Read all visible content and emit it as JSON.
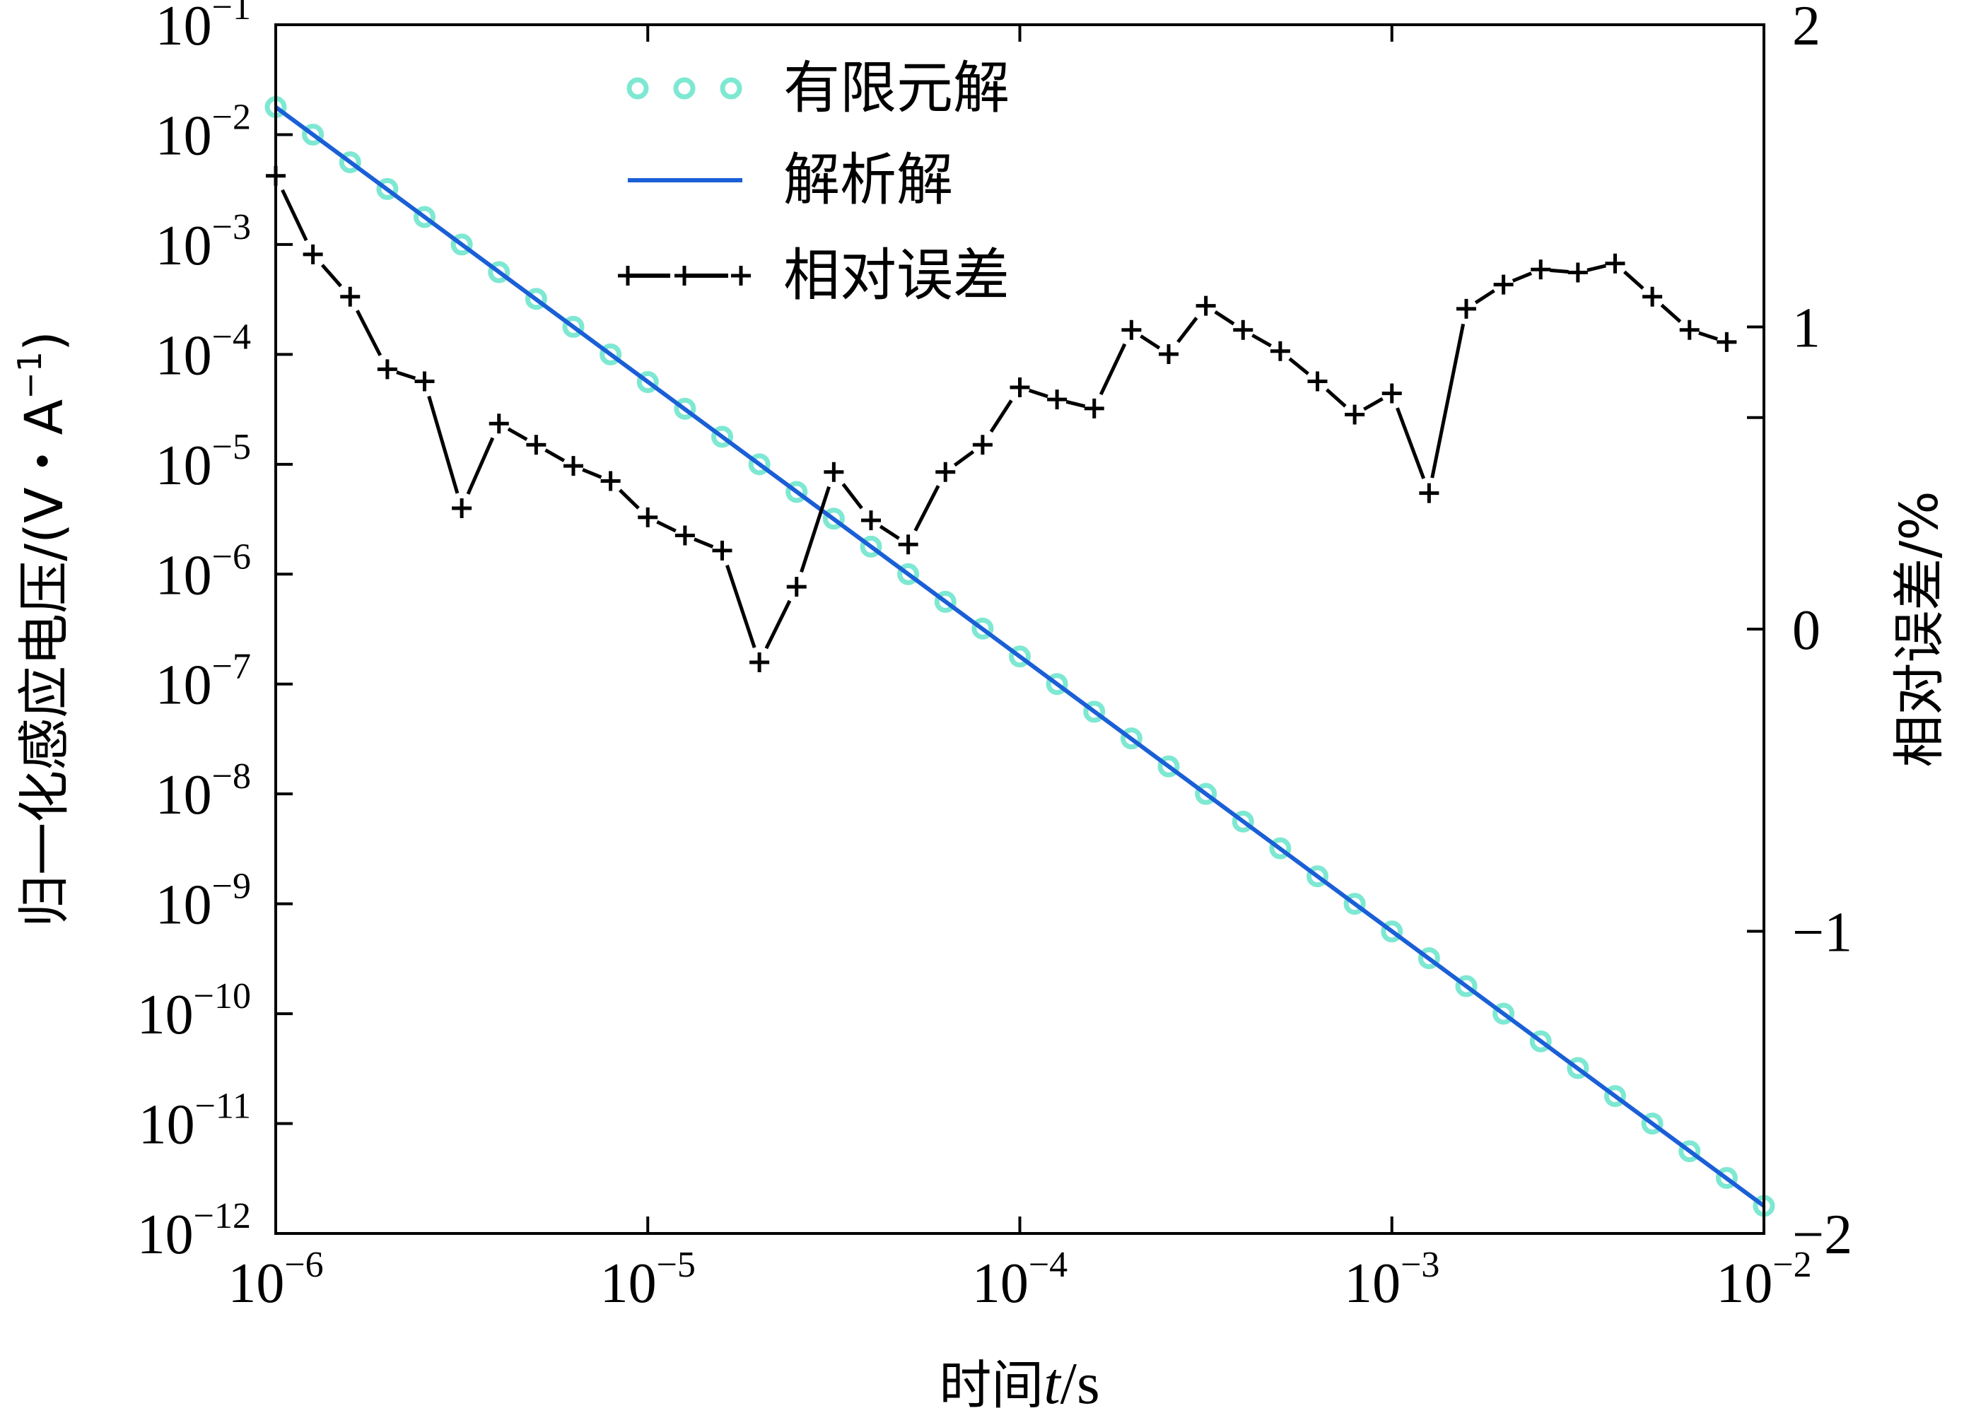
{
  "chart_data": {
    "type": "line",
    "x_scale": "log",
    "x_range": [
      1e-06,
      0.01
    ],
    "x_ticks": [
      {
        "value": 1e-06,
        "base": "10",
        "exp": "−6"
      },
      {
        "value": 1e-05,
        "base": "10",
        "exp": "−5"
      },
      {
        "value": 0.0001,
        "base": "10",
        "exp": "−4"
      },
      {
        "value": 0.001,
        "base": "10",
        "exp": "−3"
      },
      {
        "value": 0.01,
        "base": "10",
        "exp": "−2"
      }
    ],
    "xlabel_prefix": "时间",
    "xlabel_var": "t",
    "xlabel_suffix": "/s",
    "y_left_scale": "log",
    "y_left_range": [
      1e-12,
      0.1
    ],
    "y_left_ticks": [
      {
        "value": 0.1,
        "base": "10",
        "exp": "−1"
      },
      {
        "value": 0.01,
        "base": "10",
        "exp": "−2"
      },
      {
        "value": 0.001,
        "base": "10",
        "exp": "−3"
      },
      {
        "value": 0.0001,
        "base": "10",
        "exp": "−4"
      },
      {
        "value": 1e-05,
        "base": "10",
        "exp": "−5"
      },
      {
        "value": 1e-06,
        "base": "10",
        "exp": "−6"
      },
      {
        "value": 1e-07,
        "base": "10",
        "exp": "−7"
      },
      {
        "value": 1e-08,
        "base": "10",
        "exp": "−8"
      },
      {
        "value": 1e-09,
        "base": "10",
        "exp": "−9"
      },
      {
        "value": 1e-10,
        "base": "10",
        "exp": "−10"
      },
      {
        "value": 1e-11,
        "base": "10",
        "exp": "−11"
      },
      {
        "value": 1e-12,
        "base": "10",
        "exp": "−12"
      }
    ],
    "ylabel_left_main": "归一化感应电压/(V・A",
    "ylabel_left_exp": "−1",
    "ylabel_left_close": ")",
    "y_right_scale": "linear",
    "y_right_range": [
      -2,
      2
    ],
    "y_right_ticks": [
      {
        "value": 2,
        "label": "2"
      },
      {
        "value": 1,
        "label": "1"
      },
      {
        "value": 0,
        "label": "0"
      },
      {
        "value": -1,
        "label": "−1"
      },
      {
        "value": -2,
        "label": "−2"
      }
    ],
    "y_right_extra_ticks": [
      0.7
    ],
    "ylabel_right": "相对误差/%",
    "legend_position": "top",
    "grid": false,
    "series": [
      {
        "name": "有限元解",
        "axis": "left",
        "style": "markers",
        "color": "#7ee8d2",
        "x": [
          1e-06,
          1.2589e-06,
          1.5849e-06,
          1.9953e-06,
          2.5119e-06,
          3.1623e-06,
          3.9811e-06,
          5.0119e-06,
          6.3096e-06,
          7.9433e-06,
          1e-05,
          1.2589e-05,
          1.5849e-05,
          1.9953e-05,
          2.5119e-05,
          3.1623e-05,
          3.9811e-05,
          5.0119e-05,
          6.3096e-05,
          7.9433e-05,
          0.0001,
          0.00012589,
          0.00015849,
          0.00019953,
          0.00025119,
          0.00031623,
          0.00039811,
          0.00050119,
          0.00063096,
          0.00079433,
          0.001,
          0.0012589,
          0.0015849,
          0.0019953,
          0.0025119,
          0.0031623,
          0.0039811,
          0.0050119,
          0.0063096,
          0.0079433,
          0.01
        ],
        "y": [
          0.0178,
          0.01,
          0.0056,
          0.0032,
          0.00178,
          0.001,
          0.00056,
          0.00032,
          0.000178,
          0.0001,
          5.6e-05,
          3.2e-05,
          1.78e-05,
          1e-05,
          5.6e-06,
          3.2e-06,
          1.78e-06,
          1e-06,
          5.6e-07,
          3.2e-07,
          1.78e-07,
          1e-07,
          5.6e-08,
          3.2e-08,
          1.78e-08,
          1e-08,
          5.6e-09,
          3.2e-09,
          1.78e-09,
          1e-09,
          5.6e-10,
          3.2e-10,
          1.78e-10,
          1e-10,
          5.6e-11,
          3.2e-11,
          1.78e-11,
          1e-11,
          5.6e-12,
          3.2e-12,
          1.78e-12
        ]
      },
      {
        "name": "解析解",
        "axis": "left",
        "style": "line",
        "color": "#1a5fd6",
        "x": [
          1e-06,
          0.01
        ],
        "y": [
          0.0178,
          1.78e-12
        ]
      },
      {
        "name": "相对误差",
        "axis": "right",
        "style": "dashed-plus",
        "color": "#000000",
        "x": [
          1e-06,
          1.2589e-06,
          1.5849e-06,
          1.9953e-06,
          2.5119e-06,
          3.1623e-06,
          3.9811e-06,
          5.0119e-06,
          6.3096e-06,
          7.9433e-06,
          1e-05,
          1.2589e-05,
          1.5849e-05,
          1.9953e-05,
          2.5119e-05,
          3.1623e-05,
          3.9811e-05,
          5.0119e-05,
          6.3096e-05,
          7.9433e-05,
          0.0001,
          0.00012589,
          0.00015849,
          0.00019953,
          0.00025119,
          0.00031623,
          0.00039811,
          0.00050119,
          0.00063096,
          0.00079433,
          0.001,
          0.0012589,
          0.0015849,
          0.0019953,
          0.0025119,
          0.0031623,
          0.0039811,
          0.0050119,
          0.0063096,
          0.0079433
        ],
        "y": [
          1.5,
          1.24,
          1.1,
          0.86,
          0.82,
          0.4,
          0.68,
          0.61,
          0.54,
          0.49,
          0.37,
          0.31,
          0.26,
          -0.11,
          0.14,
          0.52,
          0.36,
          0.28,
          0.52,
          0.61,
          0.8,
          0.76,
          0.73,
          0.99,
          0.91,
          1.07,
          0.99,
          0.92,
          0.82,
          0.71,
          0.78,
          0.45,
          1.06,
          1.14,
          1.19,
          1.18,
          1.21,
          1.1,
          0.99,
          0.95
        ]
      }
    ]
  }
}
